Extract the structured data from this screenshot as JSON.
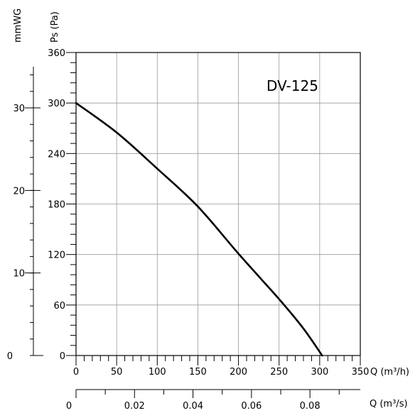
{
  "chart_data": {
    "type": "line",
    "title": "",
    "model_label": "DV-125",
    "xlabel": "Q (m³/h)",
    "xlabel_secondary": "Q (m³/s)",
    "ylabel": "Ps (Pa)",
    "ylabel_secondary": "mmWG",
    "xlim": [
      0,
      350
    ],
    "ylim": [
      0,
      360
    ],
    "x_ticks": [
      0,
      50,
      100,
      150,
      200,
      250,
      300,
      350
    ],
    "y_ticks": [
      0,
      60,
      120,
      180,
      240,
      300,
      360
    ],
    "x2_ticks": [
      0,
      0.02,
      0.04,
      0.06,
      0.08
    ],
    "x2_tick_labels": [
      "0",
      "0.02",
      "0.04",
      "0.06",
      "0.08"
    ],
    "y2_ticks": [
      0,
      10,
      20,
      30
    ],
    "grid": true,
    "series": [
      {
        "color": "#000000",
        "x": [
          0,
          50,
          100,
          150,
          200,
          250,
          280,
          303
        ],
        "y": [
          300,
          265,
          222,
          177,
          121,
          67,
          32,
          0
        ]
      }
    ]
  }
}
